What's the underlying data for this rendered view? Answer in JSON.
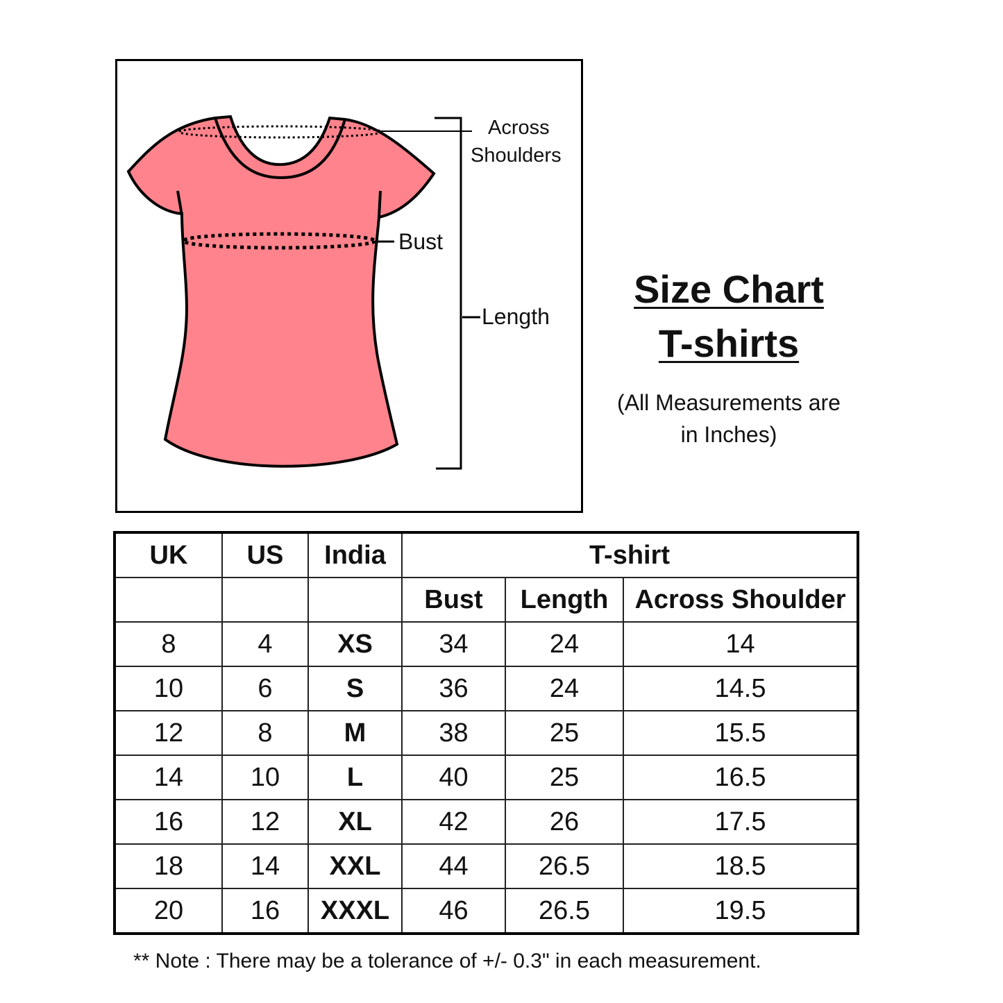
{
  "diagram": {
    "labels": {
      "across_shoulders_1": "Across",
      "across_shoulders_2": "Shoulders",
      "bust": "Bust",
      "length": "Length"
    },
    "shirt_color": "#FF838C"
  },
  "title": {
    "line1": "Size Chart",
    "line2": "T-shirts"
  },
  "subtitle": {
    "line1": "(All Measurements are",
    "line2": "in Inches)"
  },
  "table": {
    "headers": {
      "uk": "UK",
      "us": "US",
      "india": "India",
      "group": "T-shirt",
      "bust": "Bust",
      "length": "Length",
      "shoulder": "Across Shoulder"
    },
    "rows": [
      [
        "8",
        "4",
        "XS",
        "34",
        "24",
        "14"
      ],
      [
        "10",
        "6",
        "S",
        "36",
        "24",
        "14.5"
      ],
      [
        "12",
        "8",
        "M",
        "38",
        "25",
        "15.5"
      ],
      [
        "14",
        "10",
        "L",
        "40",
        "25",
        "16.5"
      ],
      [
        "16",
        "12",
        "XL",
        "42",
        "26",
        "17.5"
      ],
      [
        "18",
        "14",
        "XXL",
        "44",
        "26.5",
        "18.5"
      ],
      [
        "20",
        "16",
        "XXXL",
        "46",
        "26.5",
        "19.5"
      ]
    ]
  },
  "note": "** Note : There may be a tolerance of +/- 0.3\" in each measurement."
}
